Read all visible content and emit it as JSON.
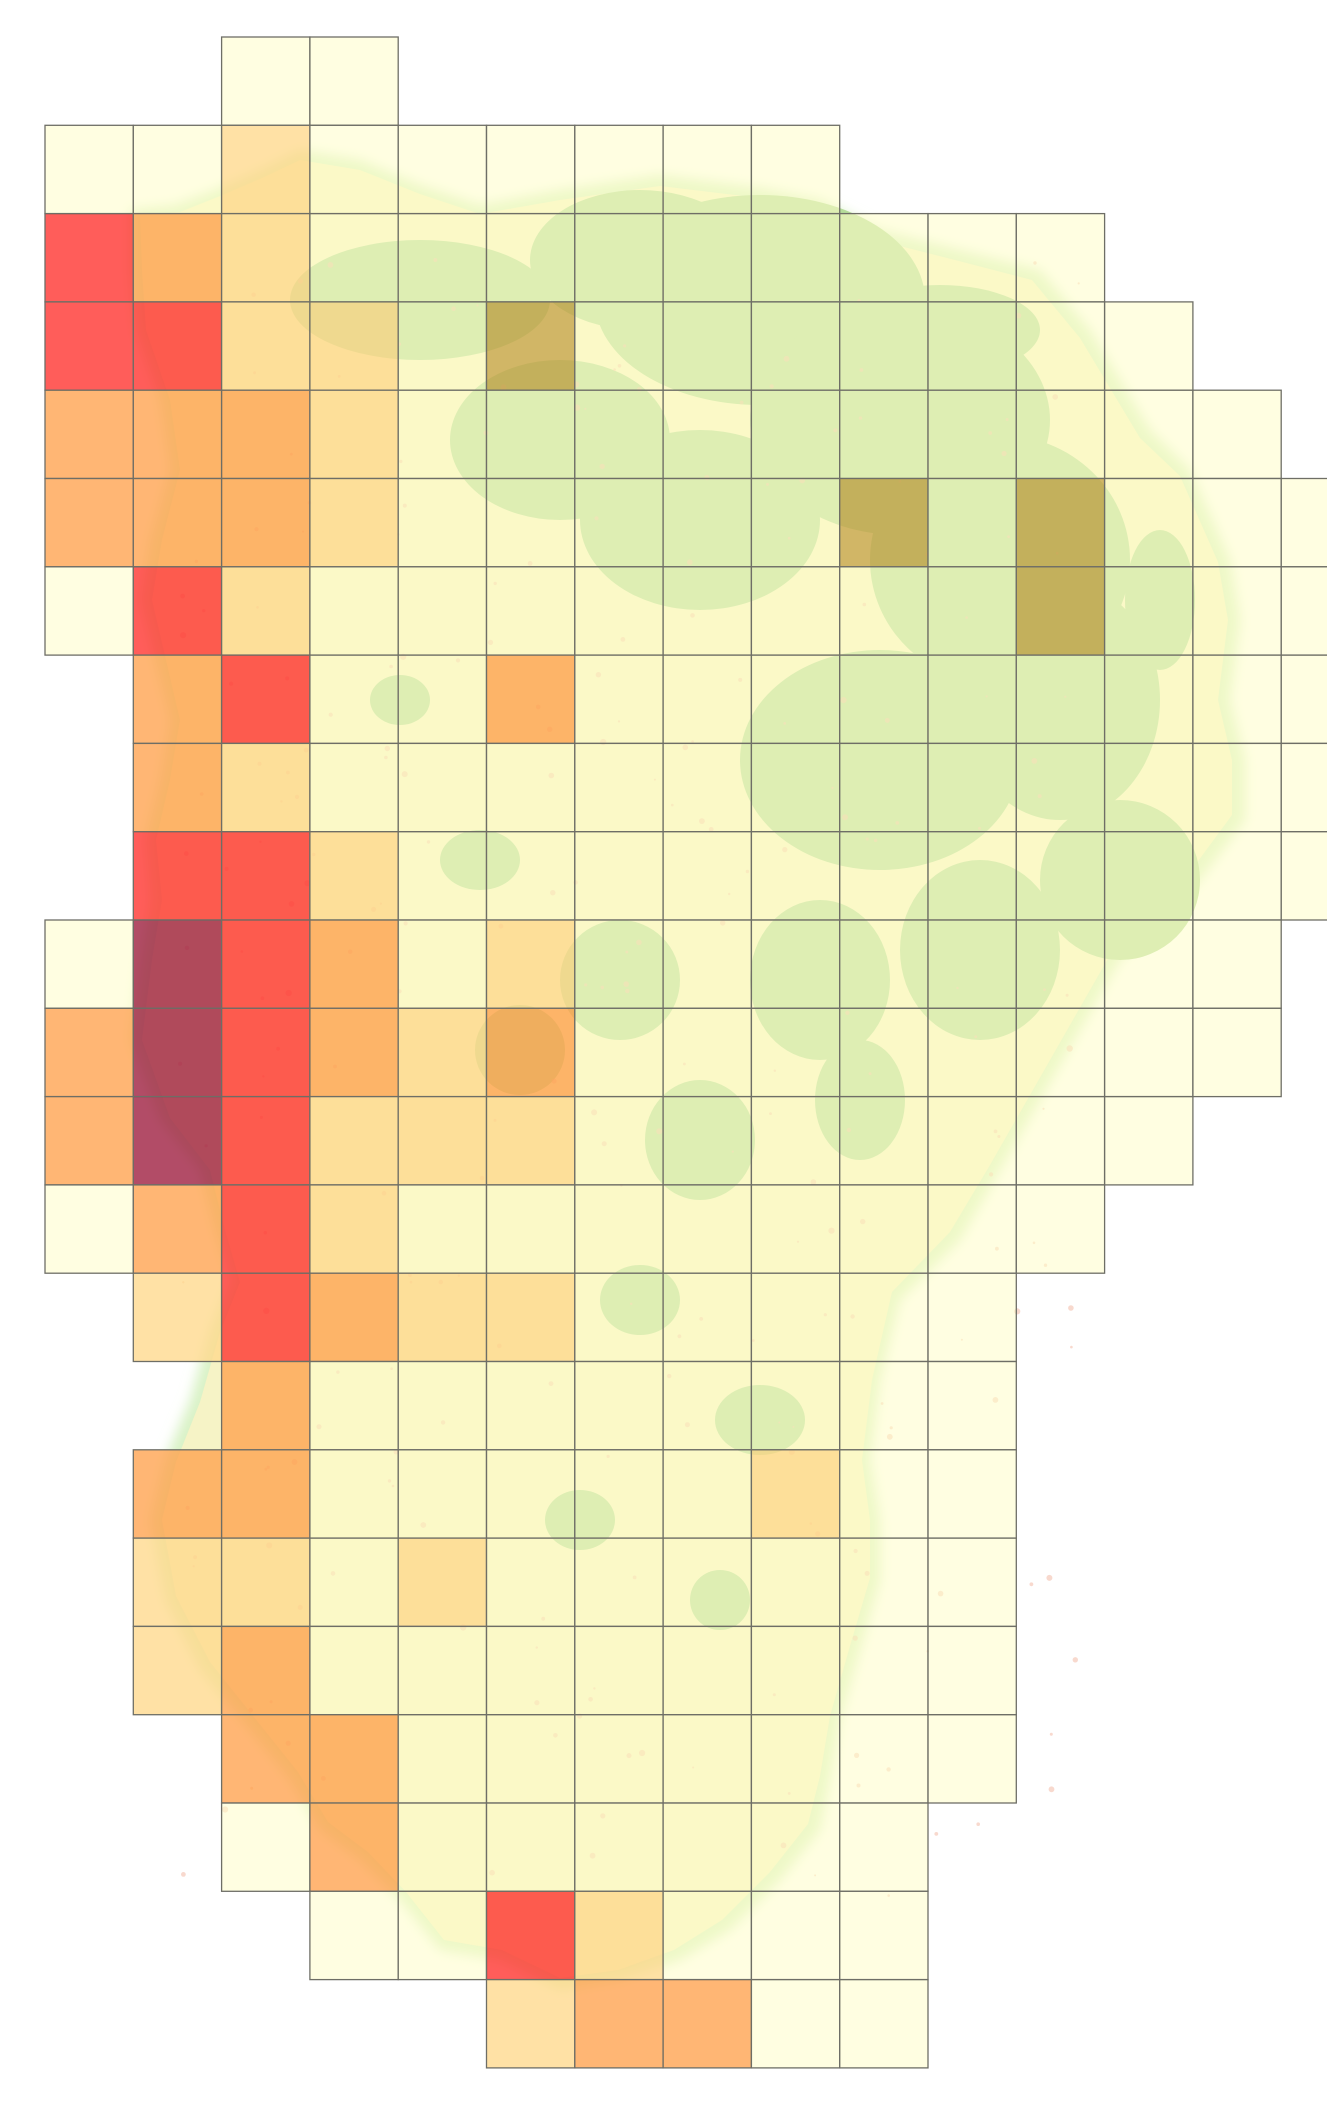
{
  "map": {
    "type": "choropleth-grid",
    "basemap": {
      "land_color": "#f6f3c6",
      "forest_color": "#b5dc9a",
      "coast_glow_color": "#d9f2c6"
    },
    "grid": {
      "line_color": "#6e6e66",
      "rows": 23,
      "cols": 14
    },
    "palette": {
      "0": "#fffdc9",
      "1": "#ffd98c",
      "2": "#ffa14d",
      "3": "#ff2f2b",
      "4": "#9c1a3c",
      "5": "#c7a44a"
    },
    "cells": [
      [
        0,
        2,
        0
      ],
      [
        0,
        3,
        0
      ],
      [
        1,
        0,
        0
      ],
      [
        1,
        1,
        0
      ],
      [
        1,
        2,
        1
      ],
      [
        1,
        3,
        0
      ],
      [
        1,
        4,
        0
      ],
      [
        1,
        5,
        0
      ],
      [
        1,
        6,
        0
      ],
      [
        1,
        7,
        0
      ],
      [
        1,
        8,
        0
      ],
      [
        2,
        0,
        3
      ],
      [
        2,
        1,
        2
      ],
      [
        2,
        2,
        1
      ],
      [
        2,
        3,
        0
      ],
      [
        2,
        4,
        0
      ],
      [
        2,
        5,
        0
      ],
      [
        2,
        6,
        0
      ],
      [
        2,
        7,
        0
      ],
      [
        2,
        8,
        0
      ],
      [
        2,
        9,
        0
      ],
      [
        2,
        10,
        0
      ],
      [
        2,
        11,
        0
      ],
      [
        3,
        0,
        3
      ],
      [
        3,
        1,
        3
      ],
      [
        3,
        2,
        1
      ],
      [
        3,
        3,
        1
      ],
      [
        3,
        4,
        0
      ],
      [
        3,
        5,
        5
      ],
      [
        3,
        6,
        0
      ],
      [
        3,
        7,
        0
      ],
      [
        3,
        8,
        0
      ],
      [
        3,
        9,
        0
      ],
      [
        3,
        10,
        0
      ],
      [
        3,
        11,
        0
      ],
      [
        3,
        12,
        0
      ],
      [
        4,
        0,
        2
      ],
      [
        4,
        1,
        2
      ],
      [
        4,
        2,
        2
      ],
      [
        4,
        3,
        1
      ],
      [
        4,
        4,
        0
      ],
      [
        4,
        5,
        0
      ],
      [
        4,
        6,
        0
      ],
      [
        4,
        7,
        0
      ],
      [
        4,
        8,
        0
      ],
      [
        4,
        9,
        0
      ],
      [
        4,
        10,
        0
      ],
      [
        4,
        11,
        0
      ],
      [
        4,
        12,
        0
      ],
      [
        4,
        13,
        0
      ],
      [
        5,
        0,
        2
      ],
      [
        5,
        1,
        2
      ],
      [
        5,
        2,
        2
      ],
      [
        5,
        3,
        1
      ],
      [
        5,
        4,
        0
      ],
      [
        5,
        5,
        0
      ],
      [
        5,
        6,
        0
      ],
      [
        5,
        7,
        0
      ],
      [
        5,
        8,
        0
      ],
      [
        5,
        9,
        5
      ],
      [
        5,
        10,
        0
      ],
      [
        5,
        11,
        5
      ],
      [
        5,
        12,
        0
      ],
      [
        5,
        13,
        0
      ],
      [
        5,
        14,
        0
      ],
      [
        6,
        0,
        0
      ],
      [
        6,
        1,
        3
      ],
      [
        6,
        2,
        1
      ],
      [
        6,
        3,
        0
      ],
      [
        6,
        4,
        0
      ],
      [
        6,
        5,
        0
      ],
      [
        6,
        6,
        0
      ],
      [
        6,
        7,
        0
      ],
      [
        6,
        8,
        0
      ],
      [
        6,
        9,
        0
      ],
      [
        6,
        10,
        0
      ],
      [
        6,
        11,
        5
      ],
      [
        6,
        12,
        0
      ],
      [
        6,
        13,
        0
      ],
      [
        6,
        14,
        0
      ],
      [
        7,
        1,
        2
      ],
      [
        7,
        2,
        3
      ],
      [
        7,
        3,
        0
      ],
      [
        7,
        4,
        0
      ],
      [
        7,
        5,
        2
      ],
      [
        7,
        6,
        0
      ],
      [
        7,
        7,
        0
      ],
      [
        7,
        8,
        0
      ],
      [
        7,
        9,
        0
      ],
      [
        7,
        10,
        0
      ],
      [
        7,
        11,
        0
      ],
      [
        7,
        12,
        0
      ],
      [
        7,
        13,
        0
      ],
      [
        7,
        14,
        0
      ],
      [
        8,
        1,
        2
      ],
      [
        8,
        2,
        1
      ],
      [
        8,
        3,
        0
      ],
      [
        8,
        4,
        0
      ],
      [
        8,
        5,
        0
      ],
      [
        8,
        6,
        0
      ],
      [
        8,
        7,
        0
      ],
      [
        8,
        8,
        0
      ],
      [
        8,
        9,
        0
      ],
      [
        8,
        10,
        0
      ],
      [
        8,
        11,
        0
      ],
      [
        8,
        12,
        0
      ],
      [
        8,
        13,
        0
      ],
      [
        8,
        14,
        0
      ],
      [
        9,
        1,
        3
      ],
      [
        9,
        2,
        3
      ],
      [
        9,
        3,
        1
      ],
      [
        9,
        4,
        0
      ],
      [
        9,
        5,
        0
      ],
      [
        9,
        6,
        0
      ],
      [
        9,
        7,
        0
      ],
      [
        9,
        8,
        0
      ],
      [
        9,
        9,
        0
      ],
      [
        9,
        10,
        0
      ],
      [
        9,
        11,
        0
      ],
      [
        9,
        12,
        0
      ],
      [
        9,
        13,
        0
      ],
      [
        9,
        14,
        0
      ],
      [
        10,
        0,
        0
      ],
      [
        10,
        1,
        4
      ],
      [
        10,
        2,
        3
      ],
      [
        10,
        3,
        2
      ],
      [
        10,
        4,
        0
      ],
      [
        10,
        5,
        1
      ],
      [
        10,
        6,
        0
      ],
      [
        10,
        7,
        0
      ],
      [
        10,
        8,
        0
      ],
      [
        10,
        9,
        0
      ],
      [
        10,
        10,
        0
      ],
      [
        10,
        11,
        0
      ],
      [
        10,
        12,
        0
      ],
      [
        10,
        13,
        0
      ],
      [
        11,
        0,
        2
      ],
      [
        11,
        1,
        4
      ],
      [
        11,
        2,
        3
      ],
      [
        11,
        3,
        2
      ],
      [
        11,
        4,
        1
      ],
      [
        11,
        5,
        2
      ],
      [
        11,
        6,
        0
      ],
      [
        11,
        7,
        0
      ],
      [
        11,
        8,
        0
      ],
      [
        11,
        9,
        0
      ],
      [
        11,
        10,
        0
      ],
      [
        11,
        11,
        0
      ],
      [
        11,
        12,
        0
      ],
      [
        11,
        13,
        0
      ],
      [
        12,
        0,
        2
      ],
      [
        12,
        1,
        4
      ],
      [
        12,
        2,
        3
      ],
      [
        12,
        3,
        1
      ],
      [
        12,
        4,
        1
      ],
      [
        12,
        5,
        1
      ],
      [
        12,
        6,
        0
      ],
      [
        12,
        7,
        0
      ],
      [
        12,
        8,
        0
      ],
      [
        12,
        9,
        0
      ],
      [
        12,
        10,
        0
      ],
      [
        12,
        11,
        0
      ],
      [
        12,
        12,
        0
      ],
      [
        13,
        0,
        0
      ],
      [
        13,
        1,
        2
      ],
      [
        13,
        2,
        3
      ],
      [
        13,
        3,
        1
      ],
      [
        13,
        4,
        0
      ],
      [
        13,
        5,
        0
      ],
      [
        13,
        6,
        0
      ],
      [
        13,
        7,
        0
      ],
      [
        13,
        8,
        0
      ],
      [
        13,
        9,
        0
      ],
      [
        13,
        10,
        0
      ],
      [
        13,
        11,
        0
      ],
      [
        14,
        1,
        1
      ],
      [
        14,
        2,
        3
      ],
      [
        14,
        3,
        2
      ],
      [
        14,
        4,
        1
      ],
      [
        14,
        5,
        1
      ],
      [
        14,
        6,
        0
      ],
      [
        14,
        7,
        0
      ],
      [
        14,
        8,
        0
      ],
      [
        14,
        9,
        0
      ],
      [
        14,
        10,
        0
      ],
      [
        15,
        2,
        2
      ],
      [
        15,
        3,
        0
      ],
      [
        15,
        4,
        0
      ],
      [
        15,
        5,
        0
      ],
      [
        15,
        6,
        0
      ],
      [
        15,
        7,
        0
      ],
      [
        15,
        8,
        0
      ],
      [
        15,
        9,
        0
      ],
      [
        15,
        10,
        0
      ],
      [
        16,
        1,
        2
      ],
      [
        16,
        2,
        2
      ],
      [
        16,
        3,
        0
      ],
      [
        16,
        4,
        0
      ],
      [
        16,
        5,
        0
      ],
      [
        16,
        6,
        0
      ],
      [
        16,
        7,
        0
      ],
      [
        16,
        8,
        1
      ],
      [
        16,
        9,
        0
      ],
      [
        16,
        10,
        0
      ],
      [
        17,
        1,
        1
      ],
      [
        17,
        2,
        1
      ],
      [
        17,
        3,
        0
      ],
      [
        17,
        4,
        1
      ],
      [
        17,
        5,
        0
      ],
      [
        17,
        6,
        0
      ],
      [
        17,
        7,
        0
      ],
      [
        17,
        8,
        0
      ],
      [
        17,
        9,
        0
      ],
      [
        17,
        10,
        0
      ],
      [
        18,
        1,
        1
      ],
      [
        18,
        2,
        2
      ],
      [
        18,
        3,
        0
      ],
      [
        18,
        4,
        0
      ],
      [
        18,
        5,
        0
      ],
      [
        18,
        6,
        0
      ],
      [
        18,
        7,
        0
      ],
      [
        18,
        8,
        0
      ],
      [
        18,
        9,
        0
      ],
      [
        18,
        10,
        0
      ],
      [
        19,
        2,
        2
      ],
      [
        19,
        3,
        2
      ],
      [
        19,
        4,
        0
      ],
      [
        19,
        5,
        0
      ],
      [
        19,
        6,
        0
      ],
      [
        19,
        7,
        0
      ],
      [
        19,
        8,
        0
      ],
      [
        19,
        9,
        0
      ],
      [
        19,
        10,
        0
      ],
      [
        20,
        2,
        0
      ],
      [
        20,
        3,
        2
      ],
      [
        20,
        4,
        0
      ],
      [
        20,
        5,
        0
      ],
      [
        20,
        6,
        0
      ],
      [
        20,
        7,
        0
      ],
      [
        20,
        8,
        0
      ],
      [
        20,
        9,
        0
      ],
      [
        21,
        3,
        0
      ],
      [
        21,
        4,
        0
      ],
      [
        21,
        5,
        3
      ],
      [
        21,
        6,
        1
      ],
      [
        21,
        7,
        0
      ],
      [
        21,
        8,
        0
      ],
      [
        21,
        9,
        0
      ],
      [
        22,
        5,
        1
      ],
      [
        22,
        6,
        2
      ],
      [
        22,
        7,
        2
      ],
      [
        22,
        8,
        0
      ],
      [
        22,
        9,
        0
      ]
    ]
  }
}
